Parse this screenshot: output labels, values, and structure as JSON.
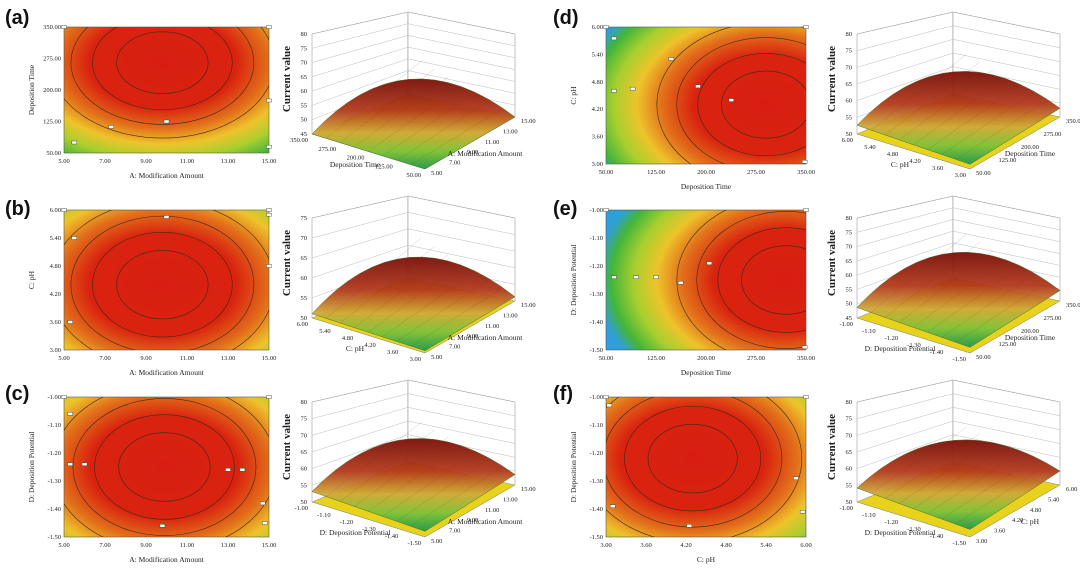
{
  "chart_data": [
    {
      "panel": "(a)",
      "type": "heatmap",
      "contour": {
        "xlabel": "A: Modification Amount",
        "ylabel": "Deposition Time",
        "xticks": [
          "5.00",
          "7.00",
          "9.00",
          "11.00",
          "13.00",
          "15.00"
        ],
        "yticks": [
          "50.00",
          "125.00",
          "200.00",
          "275.00",
          "350.00"
        ],
        "xlim": [
          5,
          15
        ],
        "ylim": [
          50,
          350
        ],
        "optimum": {
          "x": 9.8,
          "y": 265
        },
        "design_points": [
          [
            5.5,
            75
          ],
          [
            7.3,
            112
          ],
          [
            10,
            125
          ],
          [
            15,
            175
          ],
          [
            15,
            65
          ],
          [
            5,
            350
          ],
          [
            15,
            350
          ]
        ]
      },
      "surface": {
        "zlabel": "Current value",
        "zticks": [
          "45",
          "50",
          "55",
          "60",
          "65",
          "70",
          "75",
          "80"
        ],
        "xlabel": "Deposition Time",
        "ylabel": "A: Modification Amount",
        "xticks": [
          "350.00",
          "275.00",
          "200.00",
          "125.00",
          "50.00"
        ],
        "yticks": [
          "5.00",
          "7.00",
          "9.00",
          "11.00",
          "13.00",
          "15.00"
        ],
        "zlim": [
          45,
          80
        ],
        "z_min": 45,
        "z_max": 73
      }
    },
    {
      "panel": "(b)",
      "type": "heatmap",
      "contour": {
        "xlabel": "A: Modification Amount",
        "ylabel": "C: pH",
        "xticks": [
          "5.00",
          "7.00",
          "9.00",
          "11.00",
          "13.00",
          "15.00"
        ],
        "yticks": [
          "3.00",
          "3.60",
          "4.20",
          "4.80",
          "5.40",
          "6.00"
        ],
        "xlim": [
          5,
          15
        ],
        "ylim": [
          3,
          6
        ],
        "optimum": {
          "x": 9.8,
          "y": 4.4
        },
        "design_points": [
          [
            5.5,
            5.4
          ],
          [
            5.3,
            3.6
          ],
          [
            10,
            5.85
          ],
          [
            15,
            4.8
          ],
          [
            15,
            5.9
          ],
          [
            5,
            6
          ],
          [
            15,
            6
          ]
        ]
      },
      "surface": {
        "zlabel": "Current value",
        "zticks": [
          "50",
          "55",
          "60",
          "65",
          "70",
          "75"
        ],
        "xlabel": "C: pH",
        "ylabel": "A: Modification Amount",
        "xticks": [
          "6.00",
          "5.40",
          "4.80",
          "4.20",
          "3.60",
          "3.00"
        ],
        "yticks": [
          "5.00",
          "7.00",
          "9.00",
          "11.00",
          "13.00",
          "15.00"
        ],
        "zlim": [
          50,
          75
        ],
        "z_min": 52,
        "z_max": 72
      }
    },
    {
      "panel": "(c)",
      "type": "heatmap",
      "contour": {
        "xlabel": "A: Modification Amount",
        "ylabel": "D: Deposition Potential",
        "xticks": [
          "5.00",
          "7.00",
          "9.00",
          "11.00",
          "13.00",
          "15.00"
        ],
        "yticks": [
          "-1.50",
          "-1.40",
          "-1.30",
          "-1.20",
          "-1.10",
          "-1.00"
        ],
        "xlim": [
          5,
          15
        ],
        "ylim": [
          -1.5,
          -1.0
        ],
        "optimum": {
          "x": 9.9,
          "y": -1.25
        },
        "design_points": [
          [
            5.3,
            -1.06
          ],
          [
            5.3,
            -1.24
          ],
          [
            6,
            -1.24
          ],
          [
            9.8,
            -1.46
          ],
          [
            13,
            -1.26
          ],
          [
            13.7,
            -1.26
          ],
          [
            14.7,
            -1.38
          ],
          [
            14.8,
            -1.45
          ],
          [
            5,
            -1.0
          ],
          [
            15,
            -1.0
          ]
        ]
      },
      "surface": {
        "zlabel": "Current value",
        "zticks": [
          "50",
          "55",
          "60",
          "65",
          "70",
          "75",
          "80"
        ],
        "xlabel": "D: Deposition Potential",
        "ylabel": "A: Modification Amount",
        "xticks": [
          "-1.00",
          "-1.10",
          "-1.20",
          "-1.30",
          "-1.40",
          "-1.50"
        ],
        "yticks": [
          "5.00",
          "7.00",
          "9.00",
          "11.00",
          "13.00",
          "15.00"
        ],
        "zlim": [
          50,
          80
        ],
        "z_min": 56,
        "z_max": 76
      }
    },
    {
      "panel": "(d)",
      "type": "heatmap",
      "contour": {
        "xlabel": "Deposition Time",
        "ylabel": "C: pH",
        "xticks": [
          "50.00",
          "125.00",
          "200.00",
          "275.00",
          "350.00"
        ],
        "yticks": [
          "3.00",
          "3.60",
          "4.20",
          "4.80",
          "5.40",
          "6.00"
        ],
        "xlim": [
          50,
          350
        ],
        "ylim": [
          3,
          6
        ],
        "optimum": {
          "x": 290,
          "y": 4.3
        },
        "design_points": [
          [
            62,
            5.75
          ],
          [
            62,
            4.6
          ],
          [
            90,
            4.65
          ],
          [
            148,
            5.3
          ],
          [
            188,
            4.7
          ],
          [
            238,
            4.4
          ],
          [
            348,
            3.05
          ],
          [
            50,
            6
          ],
          [
            350,
            6
          ]
        ]
      },
      "surface": {
        "zlabel": "Current value",
        "zticks": [
          "50",
          "55",
          "60",
          "65",
          "70",
          "75",
          "80"
        ],
        "xlabel": "C: pH",
        "ylabel": "Deposition Time",
        "xticks": [
          "6.00",
          "5.40",
          "4.80",
          "4.20",
          "3.60",
          "3.00"
        ],
        "yticks": [
          "50.00",
          "125.00",
          "200.00",
          "275.00",
          "350.00"
        ],
        "zlim": [
          50,
          80
        ],
        "z_min": 55,
        "z_max": 76
      }
    },
    {
      "panel": "(e)",
      "type": "heatmap",
      "contour": {
        "xlabel": "Deposition Time",
        "ylabel": "D: Deposition Potential",
        "xticks": [
          "50.00",
          "125.00",
          "200.00",
          "275.00",
          "350.00"
        ],
        "yticks": [
          "-1.50",
          "-1.40",
          "-1.30",
          "-1.20",
          "-1.10",
          "-1.00"
        ],
        "xlim": [
          50,
          350
        ],
        "ylim": [
          -1.5,
          -1.0
        ],
        "optimum": {
          "x": 320,
          "y": -1.25
        },
        "design_points": [
          [
            62,
            -1.24
          ],
          [
            95,
            -1.24
          ],
          [
            125,
            -1.24
          ],
          [
            162,
            -1.26
          ],
          [
            205,
            -1.19
          ],
          [
            348,
            -1.49
          ],
          [
            50,
            -1.0
          ],
          [
            350,
            -1.0
          ]
        ]
      },
      "surface": {
        "zlabel": "Current value",
        "zticks": [
          "45",
          "50",
          "55",
          "60",
          "65",
          "70",
          "75",
          "80"
        ],
        "xlabel": "D: Deposition Potential",
        "ylabel": "Deposition Time",
        "xticks": [
          "-1.00",
          "-1.10",
          "-1.20",
          "-1.30",
          "-1.40",
          "-1.50"
        ],
        "yticks": [
          "50.00",
          "125.00",
          "200.00",
          "275.00",
          "350.00"
        ],
        "zlim": [
          45,
          80
        ],
        "z_min": 52,
        "z_max": 77
      }
    },
    {
      "panel": "(f)",
      "type": "heatmap",
      "contour": {
        "xlabel": "C: pH",
        "ylabel": "D: Deposition Potential",
        "xticks": [
          "3.00",
          "3.60",
          "4.20",
          "4.80",
          "5.40",
          "6.00"
        ],
        "yticks": [
          "-1.50",
          "-1.40",
          "-1.30",
          "-1.20",
          "-1.10",
          "-1.00"
        ],
        "xlim": [
          3,
          6
        ],
        "ylim": [
          -1.5,
          -1.0
        ],
        "optimum": {
          "x": 4.3,
          "y": -1.22
        },
        "design_points": [
          [
            3.05,
            -1.03
          ],
          [
            3.1,
            -1.39
          ],
          [
            4.25,
            -1.46
          ],
          [
            5.85,
            -1.29
          ],
          [
            5.95,
            -1.41
          ],
          [
            3,
            -1.0
          ],
          [
            6,
            -1.0
          ]
        ]
      },
      "surface": {
        "zlabel": "Current value",
        "zticks": [
          "50",
          "55",
          "60",
          "65",
          "70",
          "75",
          "80"
        ],
        "xlabel": "D: Deposition Potential",
        "ylabel": "C: pH",
        "xticks": [
          "-1.00",
          "-1.10",
          "-1.20",
          "-1.30",
          "-1.40",
          "-1.50"
        ],
        "yticks": [
          "3.00",
          "3.60",
          "4.20",
          "4.80",
          "5.40",
          "6.00"
        ],
        "zlim": [
          50,
          80
        ],
        "z_min": 58,
        "z_max": 74
      }
    }
  ]
}
